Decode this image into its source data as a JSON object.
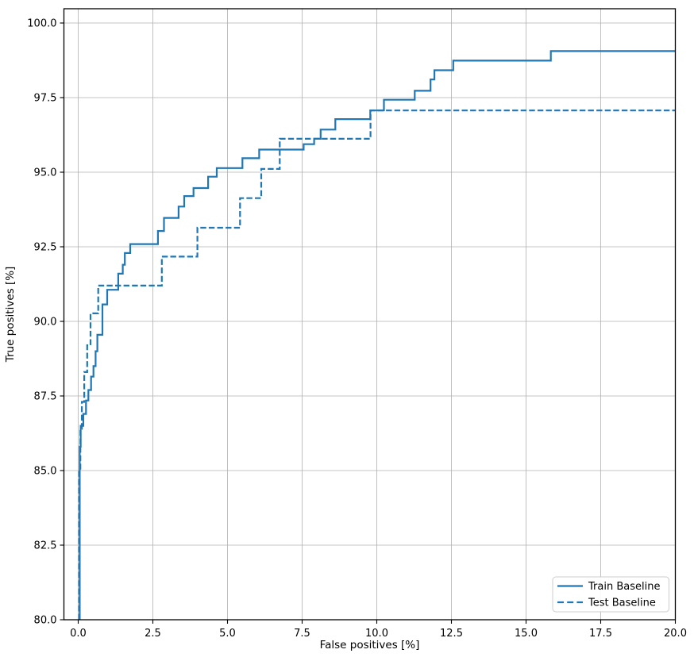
{
  "figure": {
    "background": "#ffffff",
    "title": ""
  },
  "chart_data": {
    "type": "line",
    "subtype": "step-roc",
    "title": "",
    "xlabel": "False positives [%]",
    "ylabel": "True positives [%]",
    "xlim": [
      -0.48,
      20.0
    ],
    "ylim": [
      80.0,
      100.48
    ],
    "grid": true,
    "legend_position": "lower right",
    "line_color": "#1f77b4",
    "grid_color": "#b0b0b0",
    "x_ticks": [
      0.0,
      2.5,
      5.0,
      7.5,
      10.0,
      12.5,
      15.0,
      17.5,
      20.0
    ],
    "x_tick_labels": [
      "0.0",
      "2.5",
      "5.0",
      "7.5",
      "10.0",
      "12.5",
      "15.0",
      "17.5",
      "20.0"
    ],
    "y_ticks": [
      80.0,
      82.5,
      85.0,
      87.5,
      90.0,
      92.5,
      95.0,
      97.5,
      100.0
    ],
    "y_tick_labels": [
      "80.0",
      "82.5",
      "85.0",
      "87.5",
      "90.0",
      "92.5",
      "95.0",
      "97.5",
      "100.0"
    ],
    "series": [
      {
        "name": "Train Baseline",
        "style": "solid",
        "start_x": 0.05,
        "end_x": 20.0,
        "step_points": [
          [
            0.05,
            85.8
          ],
          [
            0.08,
            86.5
          ],
          [
            0.17,
            86.9
          ],
          [
            0.26,
            87.35
          ],
          [
            0.34,
            87.7
          ],
          [
            0.43,
            88.15
          ],
          [
            0.51,
            88.5
          ],
          [
            0.58,
            89.0
          ],
          [
            0.64,
            89.55
          ],
          [
            0.81,
            90.57
          ],
          [
            0.97,
            91.06
          ],
          [
            1.34,
            91.6
          ],
          [
            1.49,
            91.9
          ],
          [
            1.56,
            92.29
          ],
          [
            1.74,
            92.59
          ],
          [
            2.67,
            93.03
          ],
          [
            2.87,
            93.47
          ],
          [
            3.36,
            93.85
          ],
          [
            3.55,
            94.2
          ],
          [
            3.86,
            94.47
          ],
          [
            4.35,
            94.85
          ],
          [
            4.64,
            95.14
          ],
          [
            5.5,
            95.47
          ],
          [
            6.06,
            95.76
          ],
          [
            7.55,
            95.94
          ],
          [
            7.9,
            96.12
          ],
          [
            8.12,
            96.43
          ],
          [
            8.61,
            96.78
          ],
          [
            9.78,
            97.07
          ],
          [
            10.24,
            97.43
          ],
          [
            11.27,
            97.73
          ],
          [
            11.8,
            98.11
          ],
          [
            11.93,
            98.42
          ],
          [
            12.56,
            98.74
          ],
          [
            15.83,
            99.06
          ]
        ]
      },
      {
        "name": "Test Baseline",
        "style": "dashed",
        "start_x": 0.03,
        "end_x": 20.0,
        "step_points": [
          [
            0.03,
            85.0
          ],
          [
            0.07,
            86.4
          ],
          [
            0.12,
            87.3
          ],
          [
            0.2,
            88.3
          ],
          [
            0.3,
            89.2
          ],
          [
            0.41,
            90.27
          ],
          [
            0.67,
            91.2
          ],
          [
            2.8,
            92.17
          ],
          [
            3.99,
            93.14
          ],
          [
            5.42,
            94.13
          ],
          [
            6.13,
            95.11
          ],
          [
            6.75,
            96.12
          ],
          [
            9.79,
            97.07
          ]
        ]
      }
    ]
  }
}
